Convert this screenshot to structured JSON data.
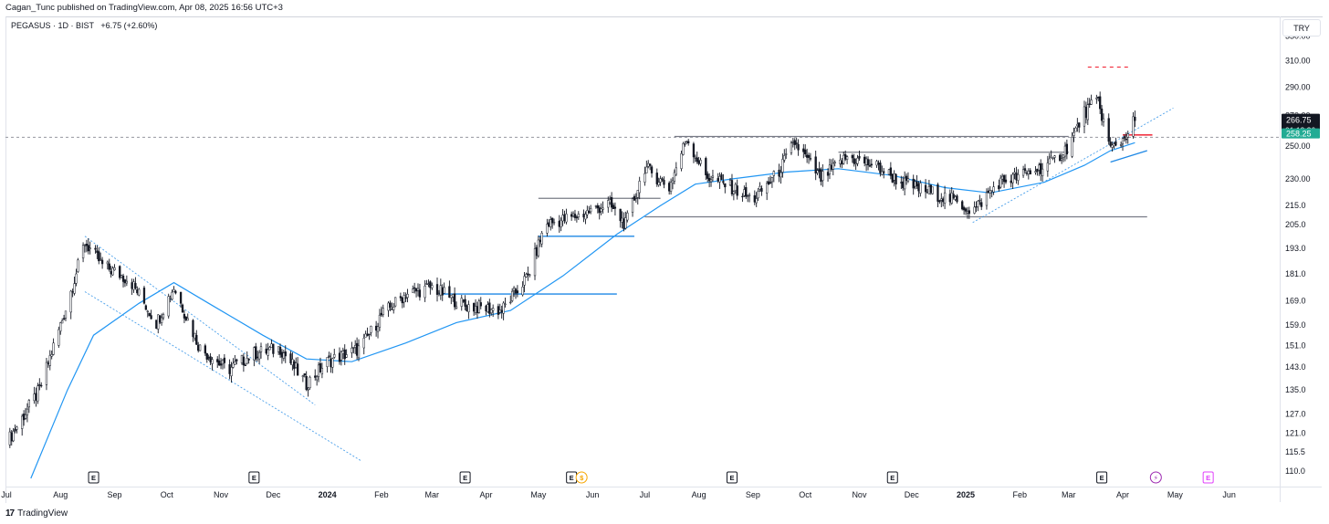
{
  "header": {
    "published_text": "Cagan_Tunc published on TradingView.com, Apr 08, 2025 16:56 UTC+3"
  },
  "legend": {
    "symbol": "PEGASUS · 1D · BIST",
    "change": "+6.75 (+2.60%)"
  },
  "price_scale": {
    "currency": "TRY",
    "ticks": [
      "330.00",
      "310.00",
      "290.00",
      "270.00",
      "250.00",
      "230.00",
      "215.0",
      "205.0",
      "193.0",
      "181.0",
      "169.0",
      "159.0",
      "151.0",
      "143.0",
      "135.0",
      "127.0",
      "121.0",
      "115.5",
      "110.0"
    ],
    "last_price": "266.75",
    "countdown": "01:13:26",
    "alert_price": "258.25",
    "scale": "log"
  },
  "time_axis": {
    "labels": [
      "Jul",
      "Aug",
      "Sep",
      "Oct",
      "Nov",
      "Dec",
      "2024",
      "Feb",
      "Mar",
      "Apr",
      "May",
      "Jun",
      "Jul",
      "Aug",
      "Sep",
      "Oct",
      "Nov",
      "Dec",
      "2025",
      "Feb",
      "Mar",
      "Apr",
      "May",
      "Jun"
    ]
  },
  "events": [
    {
      "month": "Aug 2023",
      "type": "earnings",
      "label": "E"
    },
    {
      "month": "Nov 2023",
      "type": "earnings",
      "label": "E"
    },
    {
      "month": "Mar 2024",
      "type": "earnings",
      "label": "E"
    },
    {
      "month": "May 2024",
      "type": "earnings",
      "label": "E"
    },
    {
      "month": "May 2024",
      "type": "dividend",
      "label": "$"
    },
    {
      "month": "Aug 2024",
      "type": "earnings",
      "label": "E"
    },
    {
      "month": "Nov 2024",
      "type": "earnings",
      "label": "E"
    },
    {
      "month": "Mar 2025",
      "type": "earnings",
      "label": "E"
    },
    {
      "month": "Apr 2025",
      "type": "split",
      "label": "⚡"
    },
    {
      "month": "May 2025",
      "type": "earnings-upcoming",
      "label": "E"
    }
  ],
  "footer": {
    "brand": "TradingView",
    "logo_text": "17"
  },
  "colors": {
    "candle": "#131722",
    "ma_line": "#2196f3",
    "trend_line": "#1e88e5",
    "level_line": "#787b86",
    "price_line": "#9598a1",
    "alert_green": "#22ab94",
    "red_dash": "#f23645",
    "earnings": "#131722",
    "dividend": "#f7a600",
    "split": "#9c27b0",
    "upcoming": "#e040fb"
  },
  "chart_data": {
    "type": "candlestick",
    "symbol": "PEGASUS",
    "exchange": "BIST",
    "interval": "1D",
    "x_range": [
      "2023-07-01",
      "2025-06-30"
    ],
    "y_range": [
      108,
      345
    ],
    "close_path": [
      [
        "2023-07-01",
        118
      ],
      [
        "2023-07-20",
        135
      ],
      [
        "2023-08-05",
        168
      ],
      [
        "2023-08-15",
        196
      ],
      [
        "2023-08-25",
        185
      ],
      [
        "2023-09-10",
        178
      ],
      [
        "2023-09-25",
        160
      ],
      [
        "2023-10-05",
        175
      ],
      [
        "2023-10-20",
        150
      ],
      [
        "2023-11-05",
        142
      ],
      [
        "2023-11-20",
        148
      ],
      [
        "2023-12-05",
        150
      ],
      [
        "2023-12-20",
        137
      ],
      [
        "2024-01-01",
        145
      ],
      [
        "2024-01-20",
        150
      ],
      [
        "2024-02-01",
        163
      ],
      [
        "2024-02-15",
        172
      ],
      [
        "2024-03-01",
        175
      ],
      [
        "2024-03-20",
        167
      ],
      [
        "2024-04-10",
        165
      ],
      [
        "2024-04-25",
        180
      ],
      [
        "2024-05-05",
        205
      ],
      [
        "2024-05-25",
        210
      ],
      [
        "2024-06-10",
        216
      ],
      [
        "2024-06-20",
        205
      ],
      [
        "2024-07-01",
        237
      ],
      [
        "2024-07-15",
        225
      ],
      [
        "2024-07-25",
        255
      ],
      [
        "2024-08-05",
        232
      ],
      [
        "2024-08-20",
        225
      ],
      [
        "2024-09-01",
        218
      ],
      [
        "2024-09-15",
        233
      ],
      [
        "2024-09-25",
        252
      ],
      [
        "2024-10-10",
        230
      ],
      [
        "2024-10-25",
        243
      ],
      [
        "2024-11-10",
        238
      ],
      [
        "2024-11-25",
        228
      ],
      [
        "2024-12-10",
        223
      ],
      [
        "2024-12-25",
        218
      ],
      [
        "2025-01-05",
        212
      ],
      [
        "2025-01-20",
        228
      ],
      [
        "2025-02-05",
        233
      ],
      [
        "2025-02-20",
        240
      ],
      [
        "2025-03-01",
        250
      ],
      [
        "2025-03-10",
        272
      ],
      [
        "2025-03-18",
        280
      ],
      [
        "2025-03-25",
        248
      ],
      [
        "2025-04-01",
        254
      ],
      [
        "2025-04-08",
        266.75
      ]
    ],
    "moving_average": [
      [
        "2023-07-15",
        108
      ],
      [
        "2023-08-05",
        135
      ],
      [
        "2023-08-20",
        155
      ],
      [
        "2023-09-15",
        168
      ],
      [
        "2023-10-05",
        177
      ],
      [
        "2023-10-25",
        168
      ],
      [
        "2023-11-25",
        155
      ],
      [
        "2023-12-20",
        146
      ],
      [
        "2024-01-15",
        145
      ],
      [
        "2024-02-15",
        152
      ],
      [
        "2024-03-15",
        160
      ],
      [
        "2024-04-15",
        165
      ],
      [
        "2024-05-15",
        180
      ],
      [
        "2024-06-15",
        200
      ],
      [
        "2024-07-10",
        215
      ],
      [
        "2024-07-30",
        227
      ],
      [
        "2024-08-20",
        230
      ],
      [
        "2024-09-20",
        234
      ],
      [
        "2024-10-20",
        236
      ],
      [
        "2024-11-20",
        232
      ],
      [
        "2024-12-20",
        225
      ],
      [
        "2025-01-15",
        222
      ],
      [
        "2025-02-15",
        228
      ],
      [
        "2025-03-10",
        238
      ],
      [
        "2025-03-25",
        247
      ],
      [
        "2025-04-08",
        252
      ]
    ],
    "drawings": [
      {
        "kind": "price-line",
        "y": 255.5
      },
      {
        "kind": "level",
        "x": [
          "2024-07-18",
          "2025-03-01"
        ],
        "y": 256
      },
      {
        "kind": "level",
        "x": [
          "2024-10-20",
          "2025-03-01"
        ],
        "y": 246
      },
      {
        "kind": "level",
        "x": [
          "2024-07-01",
          "2025-04-15"
        ],
        "y": 209
      },
      {
        "kind": "level",
        "x": [
          "2024-05-01",
          "2024-07-10"
        ],
        "y": 219
      },
      {
        "kind": "level-blue",
        "x": [
          "2024-05-01",
          "2024-06-25"
        ],
        "y": 199
      },
      {
        "kind": "level-blue",
        "x": [
          "2024-03-05",
          "2024-06-15"
        ],
        "y": 172
      },
      {
        "kind": "dotted-trend",
        "x": [
          "2023-08-15",
          "2023-12-25"
        ],
        "y": [
          199,
          130
        ]
      },
      {
        "kind": "dotted-trend",
        "x": [
          "2023-08-15",
          "2024-01-20"
        ],
        "y": [
          173,
          113
        ]
      },
      {
        "kind": "dotted-trend",
        "x": [
          "2025-01-05",
          "2025-04-30"
        ],
        "y": [
          206,
          275
        ]
      },
      {
        "kind": "trend",
        "x": [
          "2025-03-25",
          "2025-04-15"
        ],
        "y": [
          240,
          247
        ]
      },
      {
        "kind": "red-dashed",
        "x": [
          "2025-03-12",
          "2025-04-05"
        ],
        "y": 305
      },
      {
        "kind": "red-marker",
        "x": [
          "2025-04-01",
          "2025-04-18"
        ],
        "y": 257
      }
    ]
  }
}
